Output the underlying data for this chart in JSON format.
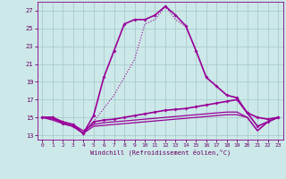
{
  "xlabel": "Windchill (Refroidissement éolien,°C)",
  "bg_color": "#cce8e8",
  "grid_color": "#aacccc",
  "line_color": "#990099",
  "xlim": [
    -0.5,
    23.5
  ],
  "ylim": [
    12.5,
    28.0
  ],
  "yticks": [
    13,
    15,
    17,
    19,
    21,
    23,
    25,
    27
  ],
  "xticks": [
    0,
    1,
    2,
    3,
    4,
    5,
    6,
    7,
    8,
    9,
    10,
    11,
    12,
    13,
    14,
    15,
    16,
    17,
    18,
    19,
    20,
    21,
    22,
    23
  ],
  "series": [
    {
      "x": [
        0,
        1,
        2,
        3,
        4,
        5,
        6,
        7,
        8,
        9,
        10,
        11,
        12,
        13,
        14,
        15,
        16,
        17,
        18,
        19,
        20,
        21,
        22,
        23
      ],
      "y": [
        15,
        15,
        14.5,
        14.2,
        13.2,
        14.5,
        16.0,
        17.5,
        19.5,
        21.5,
        25.5,
        26.0,
        27.5,
        26.0,
        25.2,
        22.5,
        19.5,
        18.5,
        17.5,
        17.2,
        15.5,
        15.0,
        14.8,
        15.0
      ],
      "marker": null,
      "lw": 0.8,
      "linestyle": "dotted"
    },
    {
      "x": [
        0,
        1,
        2,
        3,
        4,
        5,
        6,
        7,
        8,
        9,
        10,
        11,
        12,
        13,
        14,
        15,
        16,
        17,
        18,
        19,
        20,
        21,
        22,
        23
      ],
      "y": [
        15,
        15,
        14.5,
        14.2,
        13.2,
        15.2,
        19.5,
        22.5,
        25.5,
        26.0,
        26.0,
        26.5,
        27.5,
        26.5,
        25.3,
        22.5,
        19.5,
        18.5,
        17.5,
        17.2,
        15.5,
        15.0,
        14.8,
        15.0
      ],
      "marker": "D",
      "lw": 1.2,
      "linestyle": "solid"
    },
    {
      "x": [
        0,
        1,
        2,
        3,
        4,
        5,
        6,
        7,
        8,
        9,
        10,
        11,
        12,
        13,
        14,
        15,
        16,
        17,
        18,
        19,
        20,
        21,
        22,
        23
      ],
      "y": [
        15,
        15,
        14.3,
        14.0,
        13.2,
        14.5,
        14.7,
        14.8,
        15.0,
        15.2,
        15.4,
        15.6,
        15.8,
        15.9,
        16.0,
        16.2,
        16.4,
        16.6,
        16.8,
        17.0,
        15.5,
        14.0,
        14.5,
        15.0
      ],
      "marker": "D",
      "lw": 1.2,
      "linestyle": "solid"
    },
    {
      "x": [
        0,
        1,
        2,
        3,
        4,
        5,
        6,
        7,
        8,
        9,
        10,
        11,
        12,
        13,
        14,
        15,
        16,
        17,
        18,
        19,
        20,
        21,
        22,
        23
      ],
      "y": [
        15,
        14.8,
        14.5,
        14.2,
        13.5,
        14.2,
        14.4,
        14.5,
        14.6,
        14.7,
        14.8,
        14.9,
        15.0,
        15.1,
        15.2,
        15.3,
        15.4,
        15.5,
        15.6,
        15.6,
        15.0,
        13.5,
        14.5,
        15.0
      ],
      "marker": null,
      "lw": 0.9,
      "linestyle": "solid"
    },
    {
      "x": [
        0,
        1,
        2,
        3,
        4,
        5,
        6,
        7,
        8,
        9,
        10,
        11,
        12,
        13,
        14,
        15,
        16,
        17,
        18,
        19,
        20,
        21,
        22,
        23
      ],
      "y": [
        15,
        14.7,
        14.3,
        14.0,
        13.2,
        14.0,
        14.1,
        14.2,
        14.3,
        14.4,
        14.5,
        14.6,
        14.7,
        14.8,
        14.9,
        15.0,
        15.1,
        15.2,
        15.3,
        15.3,
        15.0,
        13.5,
        14.5,
        15.0
      ],
      "marker": null,
      "lw": 0.9,
      "linestyle": "solid"
    }
  ]
}
